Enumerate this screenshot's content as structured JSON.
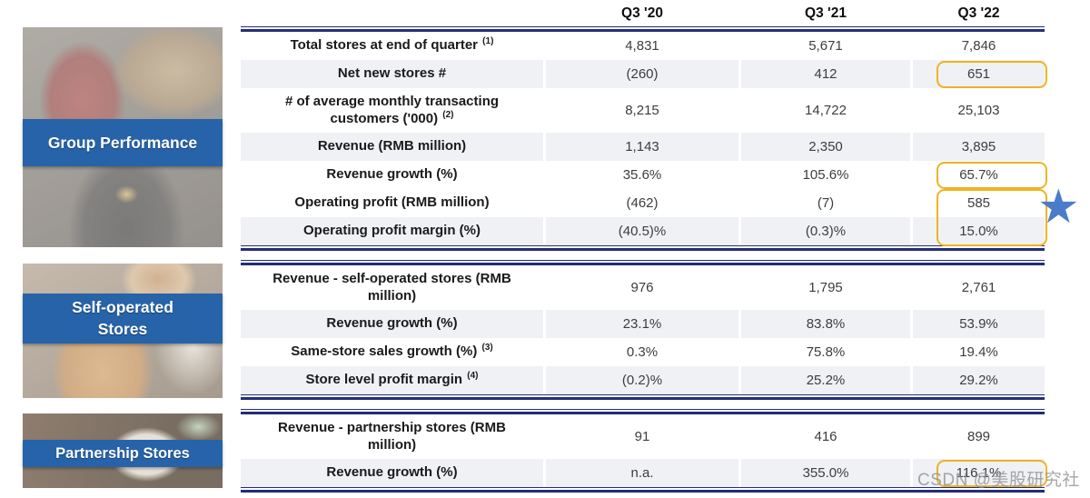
{
  "sidebar": {
    "blocks": [
      {
        "label_lines": [
          "Group Performance"
        ]
      },
      {
        "label_lines": [
          "Self-operated",
          "Stores"
        ]
      },
      {
        "label_lines": [
          "Partnership Stores"
        ]
      }
    ]
  },
  "table": {
    "columns": [
      "Q3 '20",
      "Q3 '21",
      "Q3 '22"
    ],
    "sections": [
      {
        "title": "Group Performance",
        "rows": [
          {
            "label": "Total stores at end of quarter",
            "sup": "(1)",
            "values": [
              "4,831",
              "5,671",
              "7,846"
            ],
            "shaded": false
          },
          {
            "label": "Net new stores #",
            "values": [
              "(260)",
              "412",
              "651"
            ],
            "shaded": true,
            "highlight": "651"
          },
          {
            "label": "# of average monthly transacting customers ('000)",
            "sup": "(2)",
            "values": [
              "8,215",
              "14,722",
              "25,103"
            ],
            "shaded": false,
            "two_line": true
          },
          {
            "label": "Revenue (RMB million)",
            "values": [
              "1,143",
              "2,350",
              "3,895"
            ],
            "shaded": true
          },
          {
            "label": "Revenue growth (%)",
            "values": [
              "35.6%",
              "105.6%",
              "65.7%"
            ],
            "shaded": false,
            "highlight": "65.7%"
          },
          {
            "label": "Operating profit (RMB million)",
            "values": [
              "(462)",
              "(7)",
              "585"
            ],
            "shaded": false,
            "highlight": "585"
          },
          {
            "label": "Operating profit margin (%)",
            "values": [
              "(40.5)%",
              "(0.3)%",
              "15.0%"
            ],
            "shaded": true,
            "highlight": "15.0%"
          }
        ]
      },
      {
        "title": "Self-operated Stores",
        "rows": [
          {
            "label": "Revenue - self-operated stores (RMB million)",
            "values": [
              "976",
              "1,795",
              "2,761"
            ],
            "shaded": false,
            "two_line": true
          },
          {
            "label": "Revenue growth (%)",
            "values": [
              "23.1%",
              "83.8%",
              "53.9%"
            ],
            "shaded": true
          },
          {
            "label": "Same-store sales growth (%)",
            "sup": "(3)",
            "values": [
              "0.3%",
              "75.8%",
              "19.4%"
            ],
            "shaded": false
          },
          {
            "label": "Store level profit margin",
            "sup": "(4)",
            "values": [
              "(0.2)%",
              "25.2%",
              "29.2%"
            ],
            "shaded": true
          }
        ]
      },
      {
        "title": "Partnership Stores",
        "rows": [
          {
            "label": "Revenue - partnership stores (RMB million)",
            "values": [
              "91",
              "416",
              "899"
            ],
            "shaded": false,
            "two_line": true
          },
          {
            "label": "Revenue growth (%)",
            "values": [
              "n.a.",
              "355.0%",
              "116.1%"
            ],
            "shaded": true,
            "highlight": "116.1%"
          }
        ]
      }
    ],
    "highlighted_values": [
      "651",
      "65.7%",
      "585",
      "15.0%",
      "116.1%"
    ]
  },
  "star_icon": {
    "glyph": "★"
  },
  "watermark": "CSDN @美股研究社",
  "colors": {
    "banner_blue": "#2763A8",
    "rule_navy": "#232E78",
    "highlight_gold": "#EDB422",
    "star_blue": "#4B7CC9",
    "row_shade": "#F0F1F5"
  }
}
